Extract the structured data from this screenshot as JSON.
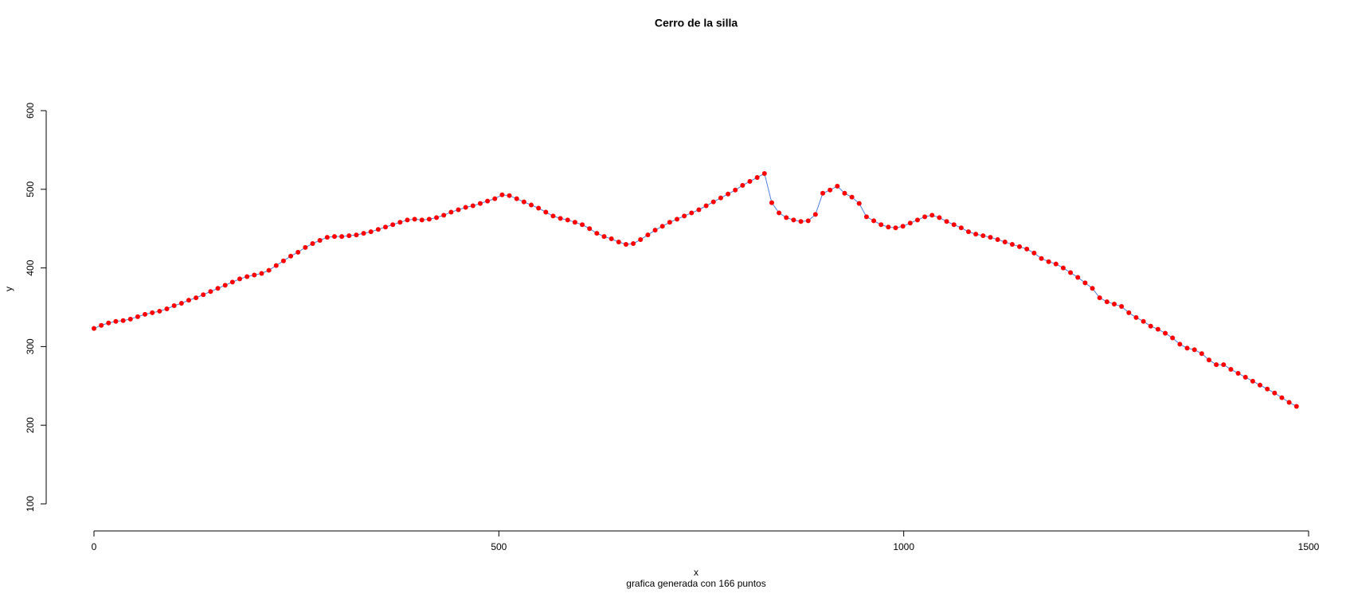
{
  "chart_data": {
    "type": "line",
    "title": "Cerro de la silla",
    "subtitle": "grafica generada con 166 puntos",
    "x_label": "x",
    "y_label": "y",
    "x": [
      0,
      9,
      18,
      27,
      36,
      45,
      54,
      63,
      72,
      81,
      90,
      99,
      108,
      117,
      126,
      135,
      144,
      153,
      162,
      171,
      180,
      189,
      198,
      207,
      216,
      225,
      234,
      243,
      252,
      261,
      270,
      279,
      288,
      297,
      306,
      315,
      324,
      333,
      342,
      351,
      360,
      369,
      378,
      387,
      396,
      405,
      414,
      423,
      432,
      441,
      450,
      459,
      468,
      477,
      486,
      495,
      504,
      513,
      522,
      531,
      540,
      549,
      558,
      567,
      576,
      585,
      594,
      603,
      612,
      621,
      630,
      639,
      648,
      657,
      666,
      675,
      684,
      693,
      702,
      711,
      720,
      729,
      738,
      747,
      756,
      765,
      774,
      783,
      792,
      801,
      810,
      819,
      828,
      837,
      846,
      855,
      864,
      873,
      882,
      891,
      900,
      909,
      918,
      927,
      936,
      945,
      954,
      963,
      972,
      981,
      990,
      999,
      1008,
      1017,
      1026,
      1035,
      1044,
      1053,
      1062,
      1071,
      1080,
      1089,
      1098,
      1107,
      1116,
      1125,
      1134,
      1143,
      1152,
      1161,
      1170,
      1179,
      1188,
      1197,
      1206,
      1215,
      1224,
      1233,
      1242,
      1251,
      1260,
      1269,
      1278,
      1287,
      1296,
      1305,
      1314,
      1323,
      1332,
      1341,
      1350,
      1359,
      1368,
      1377,
      1386,
      1395,
      1404,
      1413,
      1422,
      1431,
      1440,
      1449,
      1458,
      1467,
      1476,
      1485
    ],
    "series": [
      {
        "color": "#ff0000",
        "line_color": "#4f7fdf",
        "values": [
          323,
          327,
          330,
          332,
          333,
          335,
          338,
          341,
          343,
          345,
          348,
          352,
          355,
          359,
          362,
          366,
          370,
          374,
          378,
          382,
          386,
          389,
          391,
          393,
          397,
          403,
          409,
          415,
          420,
          426,
          431,
          435,
          439,
          440,
          440,
          441,
          442,
          444,
          446,
          449,
          452,
          455,
          458,
          461,
          462,
          461,
          462,
          464,
          467,
          471,
          474,
          477,
          479,
          482,
          485,
          488,
          493,
          492,
          488,
          484,
          480,
          476,
          471,
          466,
          463,
          461,
          458,
          455,
          450,
          444,
          440,
          437,
          433,
          430,
          431,
          436,
          442,
          448,
          453,
          458,
          462,
          466,
          470,
          474,
          479,
          484,
          489,
          494,
          499,
          505,
          510,
          515,
          520,
          483,
          470,
          464,
          461,
          459,
          460,
          468,
          495,
          499,
          504,
          495,
          490,
          482,
          465,
          460,
          455,
          452,
          451,
          453,
          457,
          461,
          465,
          467,
          464,
          459,
          455,
          451,
          446,
          443,
          441,
          439,
          436,
          433,
          430,
          427,
          424,
          419,
          412,
          408,
          405,
          400,
          394,
          388,
          381,
          374,
          362,
          357,
          354,
          351,
          343,
          337,
          332,
          326,
          322,
          317,
          311,
          303,
          298,
          296,
          291,
          283,
          277,
          277,
          271,
          266,
          261,
          256,
          251,
          246,
          241,
          235,
          229,
          224
        ]
      }
    ],
    "xlim": [
      0,
      1500
    ],
    "xticks": [
      0,
      500,
      1000,
      1500
    ],
    "ylim": [
      100,
      600
    ],
    "yticks": [
      100,
      200,
      300,
      400,
      500,
      600
    ]
  }
}
